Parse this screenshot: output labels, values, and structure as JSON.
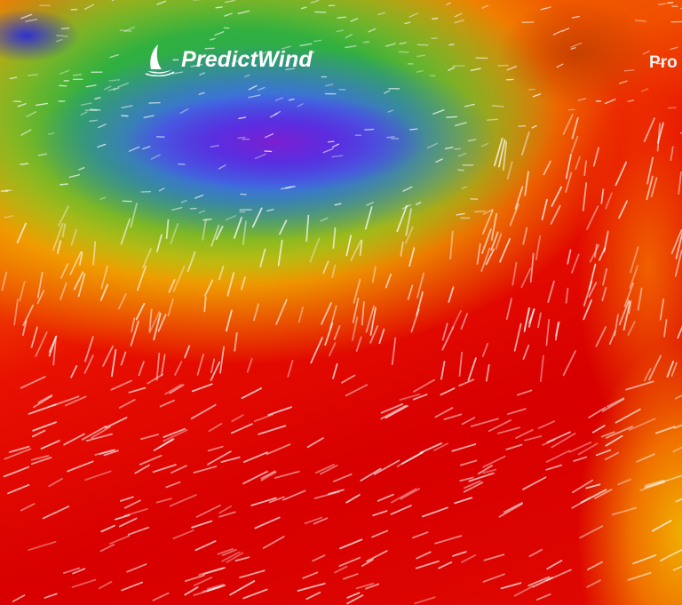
{
  "brand": {
    "name": "PredictWind",
    "logo_icon": "sail-icon"
  },
  "nav": {
    "items": [
      {
        "label": "Pro"
      }
    ]
  },
  "colors": {
    "calm": "#5a2ee0",
    "moderate": "#30b040",
    "strong": "#f0c000",
    "very_strong": "#e00000"
  }
}
